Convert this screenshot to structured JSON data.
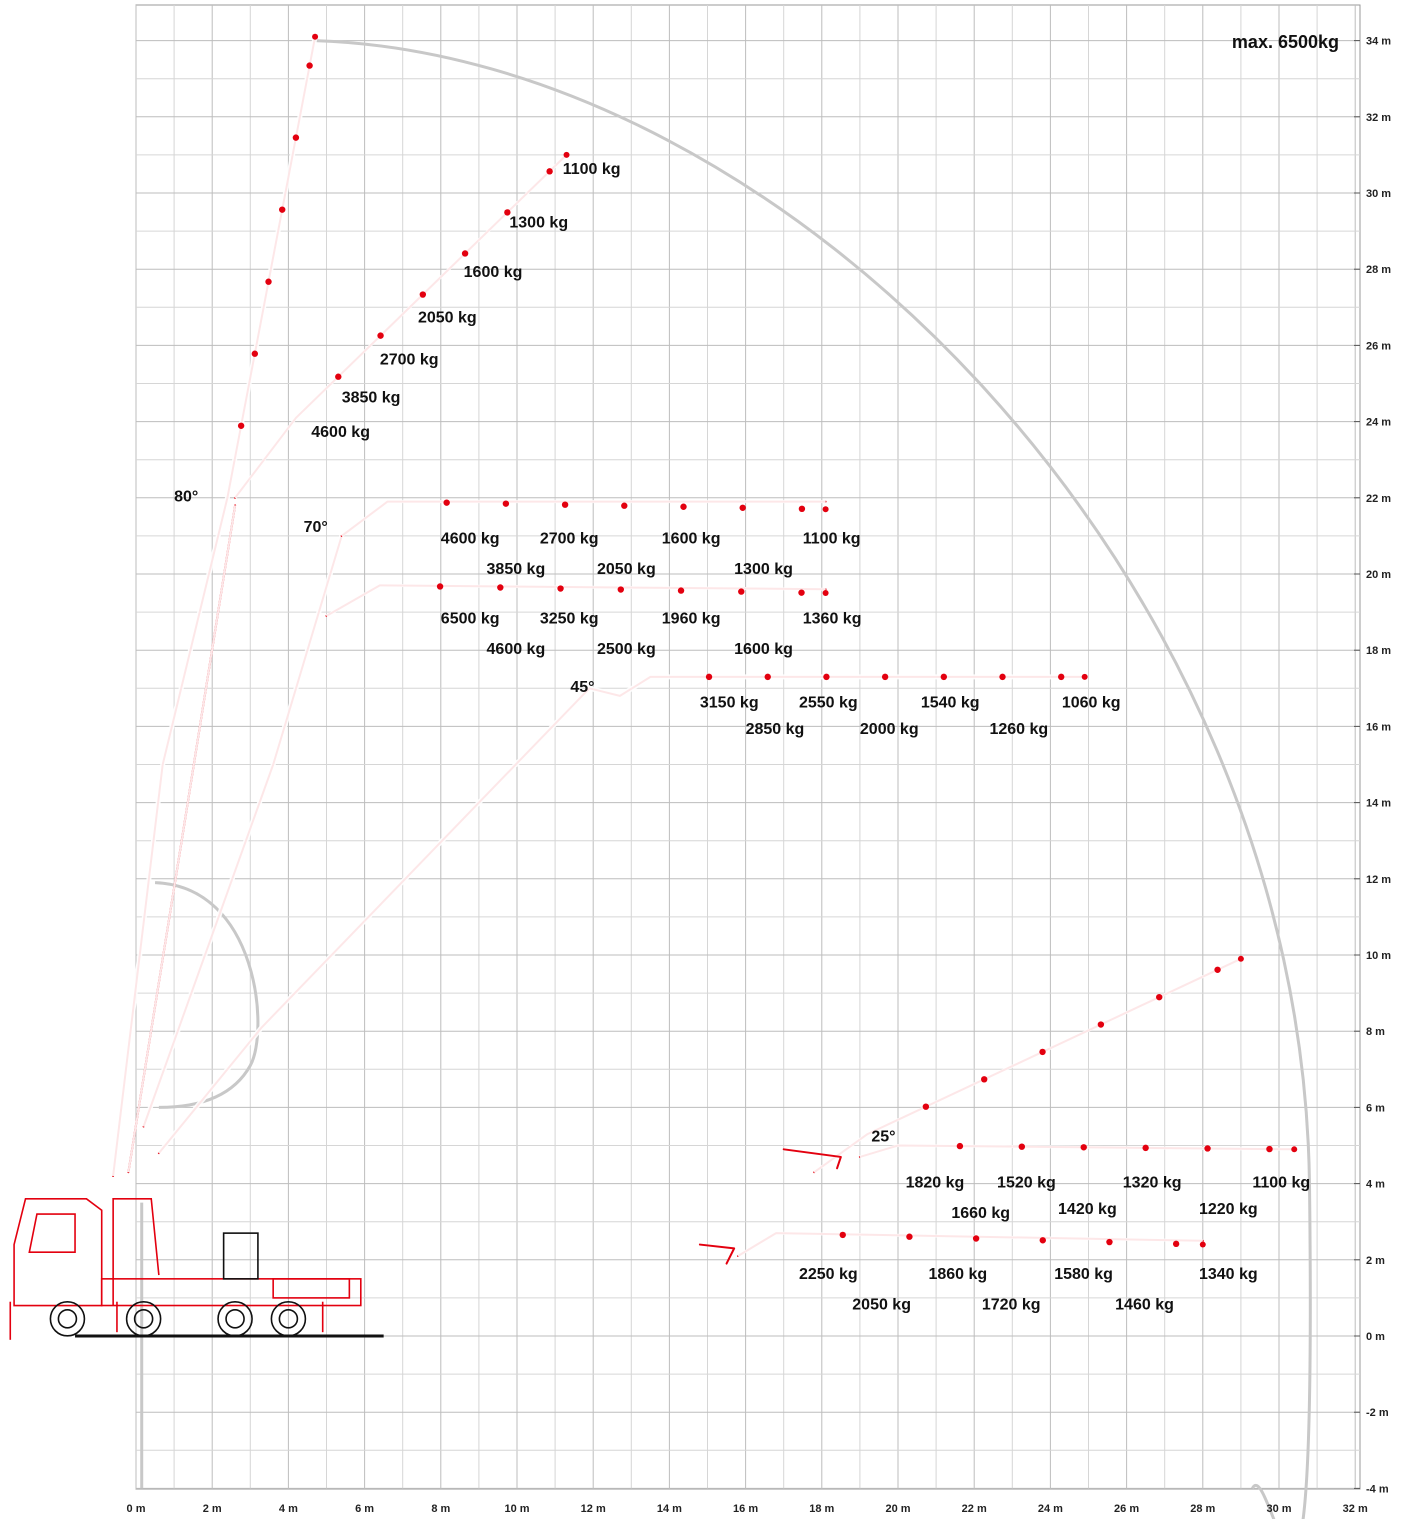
{
  "max_label": "max. 6500kg",
  "x_axis": {
    "ticks": [
      "0 m",
      "2 m",
      "4 m",
      "6 m",
      "8 m",
      "10 m",
      "12 m",
      "14 m",
      "16 m",
      "18 m",
      "20 m",
      "22 m",
      "24 m",
      "26 m",
      "28 m",
      "30 m",
      "32 m"
    ],
    "values": [
      0,
      2,
      4,
      6,
      8,
      10,
      12,
      14,
      16,
      18,
      20,
      22,
      24,
      26,
      28,
      30,
      32
    ]
  },
  "y_axis": {
    "ticks": [
      "34 m",
      "32 m",
      "30 m",
      "28 m",
      "26 m",
      "24 m",
      "22 m",
      "20 m",
      "18 m",
      "16 m",
      "14 m",
      "12 m",
      "10 m",
      "8 m",
      "6 m",
      "4 m",
      "2 m",
      "0 m",
      "-2 m",
      "-4 m"
    ],
    "values": [
      34,
      32,
      30,
      28,
      26,
      24,
      22,
      20,
      18,
      16,
      14,
      12,
      10,
      8,
      6,
      4,
      2,
      0,
      -2,
      -4
    ]
  },
  "angles": [
    {
      "label": "80°",
      "x": 1.0,
      "y": 21.9
    },
    {
      "label": "70°",
      "x": 4.4,
      "y": 21.1
    },
    {
      "label": "45°",
      "x": 11.4,
      "y": 16.9
    },
    {
      "label": "25°",
      "x": 19.3,
      "y": 5.1
    }
  ],
  "capacity_labels": [
    {
      "text": "1100 kg",
      "x": 11.2,
      "y": 30.5
    },
    {
      "text": "1300 kg",
      "x": 9.8,
      "y": 29.1
    },
    {
      "text": "1600 kg",
      "x": 8.6,
      "y": 27.8
    },
    {
      "text": "2050 kg",
      "x": 7.4,
      "y": 26.6
    },
    {
      "text": "2700 kg",
      "x": 6.4,
      "y": 25.5
    },
    {
      "text": "3850 kg",
      "x": 5.4,
      "y": 24.5
    },
    {
      "text": "4600 kg",
      "x": 4.6,
      "y": 23.6
    },
    {
      "text": "4600 kg",
      "x": 8.0,
      "y": 20.8
    },
    {
      "text": "2700 kg",
      "x": 10.6,
      "y": 20.8
    },
    {
      "text": "1600 kg",
      "x": 13.8,
      "y": 20.8
    },
    {
      "text": "1100 kg",
      "x": 17.5,
      "y": 20.8
    },
    {
      "text": "3850 kg",
      "x": 9.2,
      "y": 20.0
    },
    {
      "text": "2050 kg",
      "x": 12.1,
      "y": 20.0
    },
    {
      "text": "1300 kg",
      "x": 15.7,
      "y": 20.0
    },
    {
      "text": "6500 kg",
      "x": 8.0,
      "y": 18.7
    },
    {
      "text": "3250 kg",
      "x": 10.6,
      "y": 18.7
    },
    {
      "text": "1960 kg",
      "x": 13.8,
      "y": 18.7
    },
    {
      "text": "1360 kg",
      "x": 17.5,
      "y": 18.7
    },
    {
      "text": "4600 kg",
      "x": 9.2,
      "y": 17.9
    },
    {
      "text": "2500 kg",
      "x": 12.1,
      "y": 17.9
    },
    {
      "text": "1600 kg",
      "x": 15.7,
      "y": 17.9
    },
    {
      "text": "3150 kg",
      "x": 14.8,
      "y": 16.5
    },
    {
      "text": "2550 kg",
      "x": 17.4,
      "y": 16.5
    },
    {
      "text": "1540 kg",
      "x": 20.6,
      "y": 16.5
    },
    {
      "text": "1060 kg",
      "x": 24.3,
      "y": 16.5
    },
    {
      "text": "2850 kg",
      "x": 16.0,
      "y": 15.8
    },
    {
      "text": "2000 kg",
      "x": 19.0,
      "y": 15.8
    },
    {
      "text": "1260 kg",
      "x": 22.4,
      "y": 15.8
    },
    {
      "text": "1820 kg",
      "x": 20.2,
      "y": 3.9
    },
    {
      "text": "1520 kg",
      "x": 22.6,
      "y": 3.9
    },
    {
      "text": "1320 kg",
      "x": 25.9,
      "y": 3.9
    },
    {
      "text": "1100 kg",
      "x": 29.3,
      "y": 3.9
    },
    {
      "text": "1660 kg",
      "x": 21.4,
      "y": 3.1
    },
    {
      "text": "1420 kg",
      "x": 24.2,
      "y": 3.2
    },
    {
      "text": "1220 kg",
      "x": 27.9,
      "y": 3.2
    },
    {
      "text": "2250 kg",
      "x": 17.4,
      "y": 1.5
    },
    {
      "text": "1860 kg",
      "x": 20.8,
      "y": 1.5
    },
    {
      "text": "1580 kg",
      "x": 24.1,
      "y": 1.5
    },
    {
      "text": "1340 kg",
      "x": 27.9,
      "y": 1.5
    },
    {
      "text": "2050 kg",
      "x": 18.8,
      "y": 0.7
    },
    {
      "text": "1720 kg",
      "x": 22.2,
      "y": 0.7
    },
    {
      "text": "1460 kg",
      "x": 25.7,
      "y": 0.7
    }
  ],
  "colors": {
    "boom": "#e3000f",
    "grid": "#bdbdbd",
    "envelope": "#c8c8c8",
    "text": "#111111"
  }
}
